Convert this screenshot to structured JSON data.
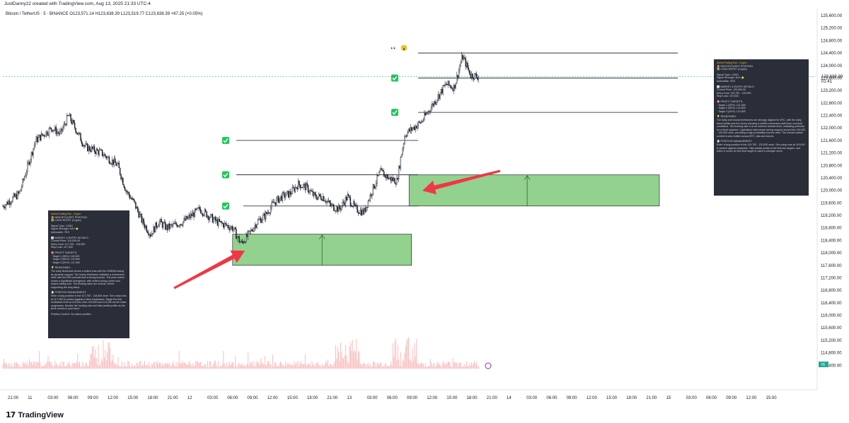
{
  "header": {
    "created_text": "JustDanny22 created with TradingView.com, Aug 13, 2025 21:33 UTC-4",
    "symbol_line": "Bitcoin / TetherUS · 5 · BINANCE   O123,571.14  H123,638.39  L123,519.77  C123,638.39  +67.25 (+0.05%)"
  },
  "footer": {
    "logo_text": "TradingView",
    "logo_mark": "17"
  },
  "price_badge": {
    "price": "123,638.39",
    "time": "01:41"
  },
  "volume_badge": "76",
  "colors": {
    "candle": "#131722",
    "zone_fill": "#7fc97a",
    "arrow": "#f23645",
    "check": "#22c55e",
    "panel_bg": "#2a2e39",
    "line": "#131722"
  },
  "chart_data": {
    "type": "candlestick",
    "y_axis": {
      "min": 114000,
      "max": 125600,
      "ticks": [
        "125,600.00",
        "125,200.00",
        "124,800.00",
        "124,400.00",
        "124,000.00",
        "123,600.00",
        "123,200.00",
        "122,800.00",
        "122,400.00",
        "122,000.00",
        "121,600.00",
        "121,200.00",
        "120,800.00",
        "120,400.00",
        "120,000.00",
        "119,600.00",
        "119,200.00",
        "118,800.00",
        "118,400.00",
        "118,000.00",
        "117,600.00",
        "117,200.00",
        "116,800.00",
        "116,400.00",
        "116,000.00",
        "115,600.00",
        "115,200.00",
        "114,800.00",
        "114,400.00"
      ]
    },
    "x_axis": {
      "ticks": [
        "21:00",
        "11",
        "03:00",
        "06:00",
        "09:00",
        "12:00",
        "15:00",
        "18:00",
        "21:00",
        "12",
        "03:00",
        "06:00",
        "09:00",
        "12:00",
        "15:00",
        "18:00",
        "21:00",
        "13",
        "03:00",
        "06:00",
        "09:00",
        "12:00",
        "15:00",
        "18:00",
        "21:00",
        "14",
        "03:00",
        "06:00",
        "09:00",
        "12:00",
        "15:00",
        "18:00",
        "21:00",
        "15",
        "03:00",
        "06:00",
        "09:00",
        "12:00",
        "15:00"
      ]
    },
    "price_path": [
      [
        0,
        119500
      ],
      [
        2,
        119900
      ],
      [
        4,
        121600
      ],
      [
        6,
        122000
      ],
      [
        7,
        121800
      ],
      [
        8,
        122400
      ],
      [
        10,
        121400
      ],
      [
        12,
        121200
      ],
      [
        14,
        120800
      ],
      [
        15,
        120000
      ],
      [
        16,
        119600
      ],
      [
        17,
        119000
      ],
      [
        18,
        118600
      ],
      [
        19,
        119000
      ],
      [
        20,
        118800
      ],
      [
        22,
        119000
      ],
      [
        24,
        119400
      ],
      [
        26,
        119000
      ],
      [
        28,
        118800
      ],
      [
        29,
        118300
      ],
      [
        30,
        118600
      ],
      [
        31,
        119000
      ],
      [
        32,
        119200
      ],
      [
        33,
        119600
      ],
      [
        34,
        119800
      ],
      [
        35,
        119900
      ],
      [
        36,
        120200
      ],
      [
        37,
        120100
      ],
      [
        38,
        119800
      ],
      [
        39,
        119800
      ],
      [
        40,
        119500
      ],
      [
        41,
        119400
      ],
      [
        42,
        119800
      ],
      [
        43,
        119400
      ],
      [
        44,
        119300
      ],
      [
        45,
        120000
      ],
      [
        46,
        120600
      ],
      [
        47,
        120400
      ],
      [
        48,
        120300
      ],
      [
        49,
        121800
      ],
      [
        50,
        122000
      ],
      [
        51,
        122200
      ],
      [
        52,
        122600
      ],
      [
        53,
        123000
      ],
      [
        54,
        123400
      ],
      [
        55,
        123300
      ],
      [
        56,
        124300
      ],
      [
        57,
        123700
      ],
      [
        58,
        123640
      ]
    ],
    "levels": [
      124400,
      123600,
      122500,
      121600,
      120500,
      119500
    ],
    "zones": [
      {
        "from_bar": 28,
        "to_bar": 49.8,
        "low": 117600,
        "high": 118600
      },
      {
        "from_bar": 49.5,
        "to_bar": 80,
        "low": 119500,
        "high": 120500
      }
    ],
    "volume_spikes": [
      12,
      42,
      49
    ]
  },
  "panel_left": {
    "lines": [
      "Alerts/Trading Bot - Crypto",
      "🚨 NEW BTC/USDT POSITION",
      "🟢 LONG ENTRY (Crypto)",
      "",
      "Signal Type: LONG",
      "Signal Strength: 8/10 ⭐",
      "Actionable: YES",
      "",
      "📊 MARKET & ENTRY DETAILS:",
      "Current Price: 119,000.00",
      "Entry Zone: 117,700 - 118,500",
      "Stop Loss: 117,000",
      "",
      "🎯 PROFIT TARGETS:",
      "· Target 1 (30%): 119,500",
      "· Target 2 (50%): 120,500",
      "· Target 3 (20%): 121,500",
      "",
      "💡 REASONING:",
      "The daily timeframe shows a bullish bias with the 200EMA acting as dynamic support. The hourly timeframe indicates a momentum shift, with the RSI oversold and a strong bounce. The price action shows a significant divergence, with sellers losing control and buyers taking over. The funding rates are neutral, further supporting the long setup.",
      "",
      "📋 POSITION MANAGEMENT:",
      "Enter a long position in the 117,700 - 118,500 zone. Set a stop loss at 117,000 to protect against a false breakdown. Target the first resistance level at 119,500, then 120,500 and 121,500 as the trade progresses. Monitor the funding rate and take partial profits as the price moves in your favor.",
      "",
      "Position Context: No active position."
    ]
  },
  "panel_right": {
    "lines": [
      "Alerts/Trading Bot - Crypto",
      "🚨 NEW BTC/USDT POSITION",
      "🟢 LONG ENTRY (Crypto)",
      "",
      "Signal Type: LONG",
      "Signal Strength: 8/10 ⭐",
      "Actionable: YES",
      "",
      "📊 MARKET & ENTRY DETAILS:",
      "Current Price: 120,000.00",
      "Entry Zone: 119,700 - 120,500",
      "Stop Loss: 119,000",
      "",
      "🎯 PROFIT TARGETS:",
      "· Target 1 (30%): 121,500",
      "· Target 2 (50%): 122,500",
      "· Target 3 (20%): 124,500",
      "",
      "💡 REASONING:",
      "The daily and hourly timeframes are strongly aligned for BTC, with the daily trend bullish and the hourly showing a bullish momentum shift from oversold conditions. The funding rate is at an extreme bearish level, indicating potential for a short squeeze. Liquidation data shows strong support around the 119,500 - 120,000 zone, providing a high-probability bounce area. The overall market context is also bullish across BTC, alts and futures.",
      "",
      "📋 POSITION MANAGEMENT:",
      "Enter a long position in the 119,700 - 120,500 zone. Set a stop loss at 119,000 to protect against downside. Take partial profits at the first two targets, and leave a runner for the third target to catch a stronger move."
    ]
  }
}
